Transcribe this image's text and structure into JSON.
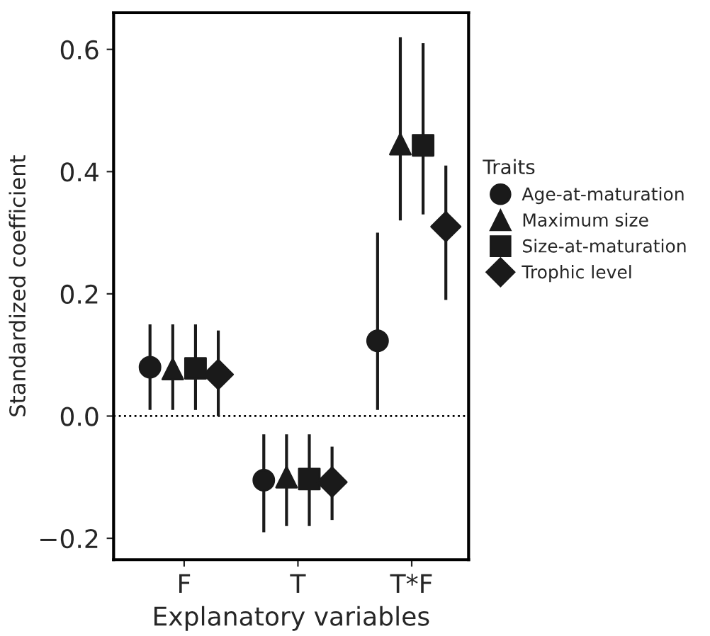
{
  "chart_data": {
    "type": "scatter",
    "xlabel": "Explanatory variables",
    "ylabel": "Standardized coefficient",
    "legend_title": "Traits",
    "categories": [
      "F",
      "T",
      "T*F"
    ],
    "series": [
      {
        "name": "Age-at-maturation",
        "color": "#1a1a1a",
        "marker": "circle",
        "values": [
          0.08,
          -0.105,
          0.123
        ],
        "errors": [
          [
            0.01,
            0.15
          ],
          [
            -0.19,
            -0.03
          ],
          [
            0.01,
            0.3
          ]
        ]
      },
      {
        "name": "Maximum size",
        "color": "#1a1a1a",
        "marker": "triangle",
        "values": [
          0.077,
          -0.1,
          0.445
        ],
        "errors": [
          [
            0.01,
            0.15
          ],
          [
            -0.18,
            -0.03
          ],
          [
            0.32,
            0.62
          ]
        ]
      },
      {
        "name": "Size-at-maturation",
        "color": "#1a1a1a",
        "marker": "square",
        "values": [
          0.078,
          -0.103,
          0.443
        ],
        "errors": [
          [
            0.01,
            0.15
          ],
          [
            -0.18,
            -0.03
          ],
          [
            0.33,
            0.61
          ]
        ]
      },
      {
        "name": "Trophic level",
        "color": "#1a1a1a",
        "marker": "diamond",
        "values": [
          0.068,
          -0.108,
          0.31
        ],
        "errors": [
          [
            0.0,
            0.14
          ],
          [
            -0.17,
            -0.05
          ],
          [
            0.19,
            0.41
          ]
        ]
      }
    ],
    "ylim": [
      -0.235,
      0.66
    ],
    "yticks": [
      {
        "value": -0.2,
        "label": "−0.2"
      },
      {
        "value": 0.0,
        "label": "0.0"
      },
      {
        "value": 0.2,
        "label": "0.2"
      },
      {
        "value": 0.4,
        "label": "0.4"
      },
      {
        "value": 0.6,
        "label": "0.6"
      }
    ],
    "ref_lines": [
      {
        "axis": "y",
        "value": 0.0,
        "color": "#000000",
        "line_style": "dotted"
      }
    ],
    "legend": "right",
    "grid": false
  }
}
